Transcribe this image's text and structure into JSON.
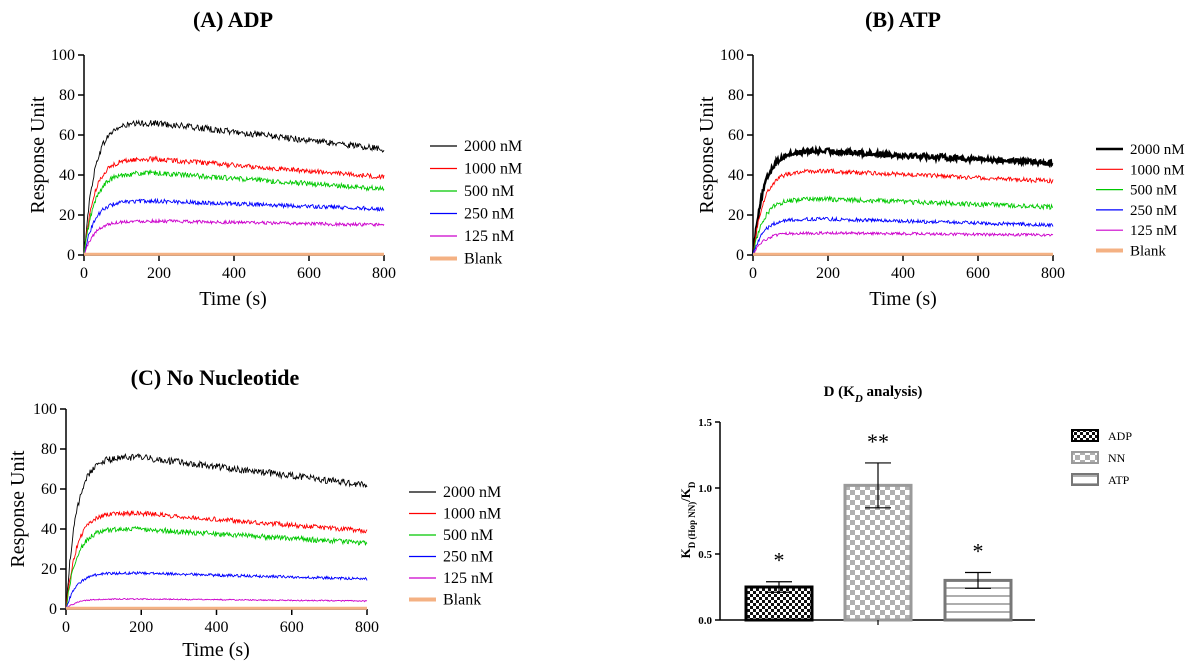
{
  "chart_data": [
    {
      "id": "A",
      "type": "line",
      "title": "(A) ADP",
      "xlabel": "Time (s)",
      "ylabel": "Response Unit",
      "xlim": [
        0,
        800
      ],
      "ylim": [
        0,
        100
      ],
      "xticks": [
        0,
        200,
        400,
        600,
        800
      ],
      "yticks": [
        0,
        20,
        40,
        60,
        80,
        100
      ],
      "legend_position": "right",
      "series": [
        {
          "name": "2000 nM",
          "color": "#000000",
          "plateau": 66,
          "final": 53,
          "noise": 1.6
        },
        {
          "name": "1000 nM",
          "color": "#ff0000",
          "plateau": 48,
          "final": 39,
          "noise": 1.2
        },
        {
          "name": "500 nM",
          "color": "#00c800",
          "plateau": 41,
          "final": 33,
          "noise": 1.3
        },
        {
          "name": "250 nM",
          "color": "#0000ff",
          "plateau": 27,
          "final": 23,
          "noise": 1.0
        },
        {
          "name": "125 nM",
          "color": "#cc00cc",
          "plateau": 17,
          "final": 15,
          "noise": 0.8
        },
        {
          "name": "Blank",
          "color": "#f4b183",
          "plateau": 0,
          "final": 0,
          "noise": 0
        }
      ]
    },
    {
      "id": "B",
      "type": "line",
      "title": "(B) ATP",
      "xlabel": "Time (s)",
      "ylabel": "Response Unit",
      "xlim": [
        0,
        800
      ],
      "ylim": [
        0,
        100
      ],
      "xticks": [
        0,
        200,
        400,
        600,
        800
      ],
      "yticks": [
        0,
        20,
        40,
        60,
        80,
        100
      ],
      "legend_position": "right",
      "series": [
        {
          "name": "2000 nM",
          "color": "#000000",
          "plateau": 52,
          "final": 46,
          "noise": 1.4
        },
        {
          "name": "1000 nM",
          "color": "#ff0000",
          "plateau": 42,
          "final": 37,
          "noise": 1.1
        },
        {
          "name": "500 nM",
          "color": "#00c800",
          "plateau": 28,
          "final": 24,
          "noise": 1.2
        },
        {
          "name": "250 nM",
          "color": "#0000ff",
          "plateau": 18,
          "final": 15,
          "noise": 0.9
        },
        {
          "name": "125 nM",
          "color": "#cc00cc",
          "plateau": 11,
          "final": 10,
          "noise": 0.7
        },
        {
          "name": "Blank",
          "color": "#f4b183",
          "plateau": 0,
          "final": 0,
          "noise": 0
        }
      ]
    },
    {
      "id": "C",
      "type": "line",
      "title": "(C) No Nucleotide",
      "xlabel": "Time (s)",
      "ylabel": "Response Unit",
      "xlim": [
        0,
        800
      ],
      "ylim": [
        0,
        100
      ],
      "xticks": [
        0,
        200,
        400,
        600,
        800
      ],
      "yticks": [
        0,
        20,
        40,
        60,
        80,
        100
      ],
      "legend_position": "right",
      "series": [
        {
          "name": "2000 nM",
          "color": "#000000",
          "plateau": 76,
          "final": 62,
          "noise": 1.7
        },
        {
          "name": "1000 nM",
          "color": "#ff0000",
          "plateau": 48,
          "final": 39,
          "noise": 1.2
        },
        {
          "name": "500 nM",
          "color": "#00c800",
          "plateau": 40,
          "final": 33,
          "noise": 1.3
        },
        {
          "name": "250 nM",
          "color": "#0000ff",
          "plateau": 18,
          "final": 15,
          "noise": 0.7
        },
        {
          "name": "125 nM",
          "color": "#cc00cc",
          "plateau": 5,
          "final": 4,
          "noise": 0.3
        },
        {
          "name": "Blank",
          "color": "#f4b183",
          "plateau": 0,
          "final": 0,
          "noise": 0
        }
      ]
    },
    {
      "id": "D",
      "type": "bar",
      "title": "D (K",
      "title_sub": "D",
      "title_suffix": " analysis)",
      "ylabel_main": "K",
      "ylabel_sub1": "D (Hop NN)",
      "ylabel_mid": "/K",
      "ylabel_sub2": "D",
      "ylim": [
        0,
        1.5
      ],
      "yticks": [
        "0.0",
        "0.5",
        "1.0",
        "1.5"
      ],
      "legend_position": "top-right",
      "categories": [
        "ADP",
        "NN",
        "ATP"
      ],
      "values": [
        0.25,
        1.02,
        0.3
      ],
      "errors": [
        0.04,
        0.17,
        0.06
      ],
      "significance": [
        "*",
        "**",
        "*"
      ],
      "fills": [
        "checker-dark",
        "checker-light",
        "horizontal-lines"
      ]
    }
  ]
}
